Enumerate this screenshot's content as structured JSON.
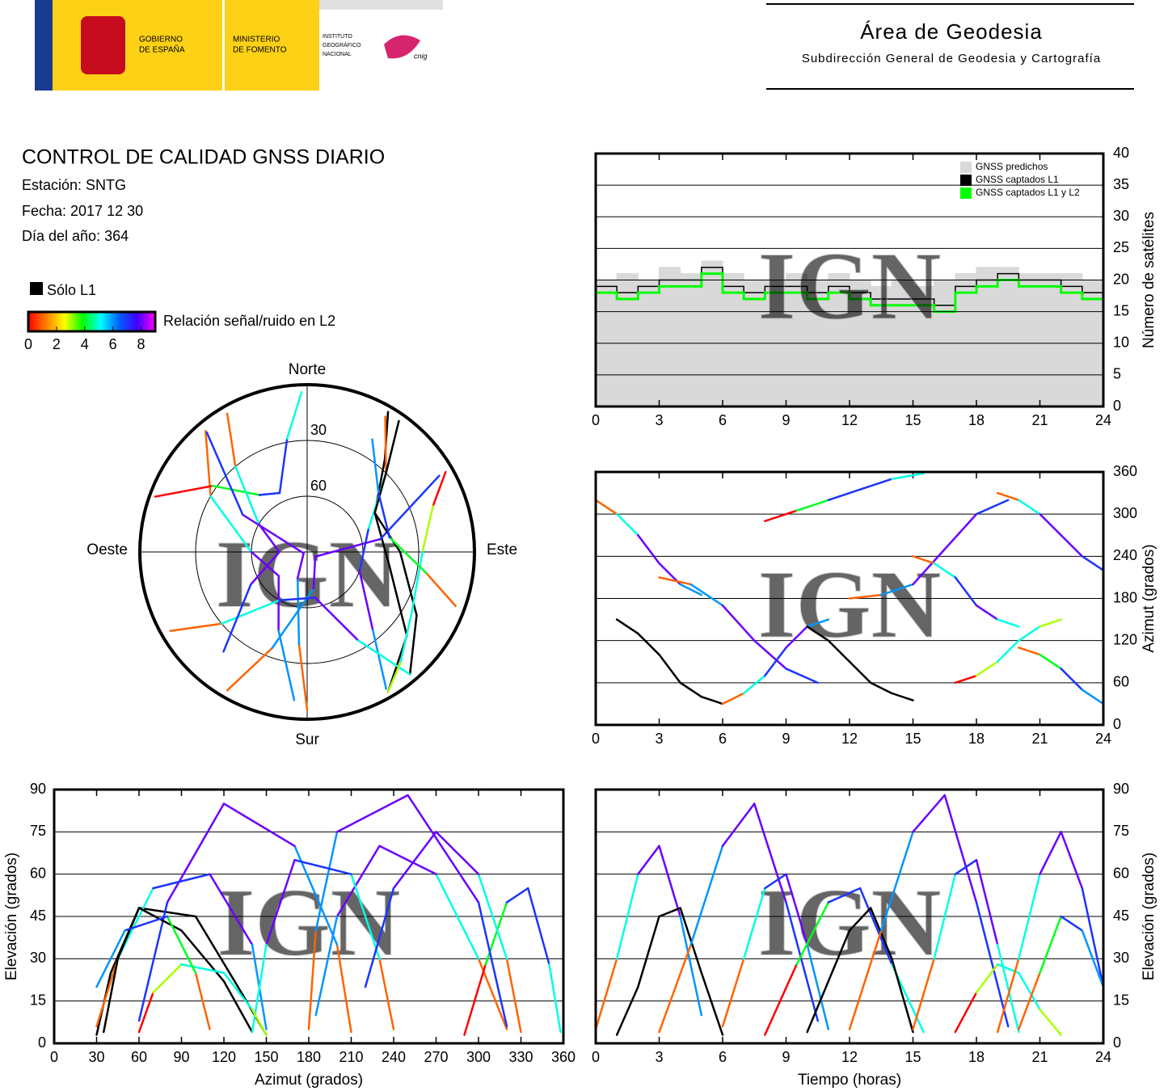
{
  "header": {
    "gov": [
      "GOBIERNO",
      "DE ESPAÑA"
    ],
    "ministry": [
      "MINISTERIO",
      "DE FOMENTO"
    ],
    "institute": [
      "INSTITUTO",
      "GEOGRÁFICO",
      "NACIONAL"
    ],
    "brand": "cnig",
    "area": "Área de Geodesia",
    "subarea": "Subdirección General de Geodesia y Cartografía"
  },
  "info": {
    "title": "CONTROL DE CALIDAD GNSS DIARIO",
    "station": "Estación: SNTG",
    "date": "Fecha: 2017 12 30",
    "doy": "Día del año: 364",
    "l1_only_label": "Sólo L1",
    "l1_only_color": "#000000",
    "colorbar": {
      "label": "Relación señal/ruido en L2",
      "clim": [
        0,
        9
      ],
      "ticks": [
        0,
        2,
        4,
        6,
        8
      ],
      "colors": [
        "#ff0000",
        "#ff8000",
        "#ffff00",
        "#00ff00",
        "#00ffff",
        "#0060ff",
        "#4000ff",
        "#ff00ff"
      ]
    }
  },
  "watermark": "IGN",
  "chart_data": [
    {
      "type": "skyplot",
      "north": "Norte",
      "south": "Sur",
      "east": "Este",
      "west": "Oeste",
      "rlim": [
        0,
        90
      ],
      "rticks": [
        30,
        60
      ],
      "passes": [
        {
          "time": [
            0,
            1,
            2,
            3,
            4,
            5
          ],
          "az": [
            320,
            300,
            270,
            230,
            200,
            185
          ],
          "el": [
            5,
            30,
            60,
            70,
            45,
            10
          ],
          "snr": [
            1,
            5,
            8,
            8,
            6,
            2
          ],
          "l1_only": false
        },
        {
          "time": [
            1,
            2,
            3,
            4,
            5,
            6
          ],
          "az": [
            150,
            130,
            100,
            60,
            40,
            30
          ],
          "el": [
            3,
            20,
            45,
            48,
            25,
            3
          ],
          "snr": [
            0,
            4,
            7,
            7,
            4,
            0
          ],
          "l1_only": true
        },
        {
          "time": [
            3,
            4.5,
            6,
            7.5,
            9,
            10.5
          ],
          "az": [
            210,
            200,
            170,
            120,
            80,
            60
          ],
          "el": [
            4,
            35,
            70,
            85,
            50,
            8
          ],
          "snr": [
            1,
            6,
            8,
            8,
            7,
            2
          ],
          "l1_only": false
        },
        {
          "time": [
            6,
            7,
            8,
            9,
            10,
            11
          ],
          "az": [
            30,
            45,
            70,
            110,
            140,
            150
          ],
          "el": [
            6,
            30,
            55,
            60,
            35,
            5
          ],
          "snr": [
            1,
            5,
            7,
            8,
            6,
            1
          ],
          "l1_only": false
        },
        {
          "time": [
            8,
            9.5,
            11,
            12.5,
            14,
            15.5
          ],
          "az": [
            290,
            305,
            320,
            335,
            350,
            358
          ],
          "el": [
            3,
            28,
            50,
            55,
            28,
            4
          ],
          "snr": [
            0,
            4,
            7,
            7,
            5,
            1
          ],
          "l1_only": false
        },
        {
          "time": [
            10,
            11,
            12,
            13,
            14,
            15
          ],
          "az": [
            140,
            120,
            90,
            60,
            45,
            35
          ],
          "el": [
            4,
            22,
            40,
            48,
            30,
            4
          ],
          "snr": [
            0,
            3,
            6,
            6,
            4,
            0
          ],
          "l1_only": true
        },
        {
          "time": [
            12,
            13.5,
            15,
            16.5,
            18,
            19.5
          ],
          "az": [
            180,
            185,
            200,
            250,
            300,
            320
          ],
          "el": [
            5,
            40,
            75,
            88,
            50,
            6
          ],
          "snr": [
            1,
            6,
            8,
            8,
            7,
            2
          ],
          "l1_only": false
        },
        {
          "time": [
            15,
            16,
            17,
            18,
            19,
            20
          ],
          "az": [
            240,
            230,
            210,
            170,
            150,
            140
          ],
          "el": [
            5,
            30,
            60,
            65,
            35,
            4
          ],
          "snr": [
            1,
            5,
            7,
            8,
            5,
            1
          ],
          "l1_only": false
        },
        {
          "time": [
            17,
            18,
            19,
            20,
            21,
            22
          ],
          "az": [
            60,
            70,
            90,
            120,
            140,
            150
          ],
          "el": [
            4,
            18,
            28,
            25,
            12,
            3
          ],
          "snr": [
            0,
            3,
            5,
            5,
            3,
            0
          ],
          "l1_only": false
        },
        {
          "time": [
            19,
            20,
            21,
            22,
            23,
            24
          ],
          "az": [
            330,
            320,
            300,
            270,
            240,
            220
          ],
          "el": [
            4,
            30,
            60,
            75,
            55,
            20
          ],
          "snr": [
            1,
            5,
            8,
            8,
            7,
            4
          ],
          "l1_only": false
        },
        {
          "time": [
            20,
            21,
            22,
            23,
            24
          ],
          "az": [
            110,
            100,
            80,
            50,
            30
          ],
          "el": [
            5,
            25,
            45,
            40,
            20
          ],
          "snr": [
            1,
            4,
            7,
            6,
            3
          ],
          "l1_only": false
        }
      ]
    },
    {
      "type": "step",
      "ylabel": "Número de satélites",
      "x": [
        0,
        1,
        2,
        3,
        4,
        5,
        6,
        7,
        8,
        9,
        10,
        11,
        12,
        13,
        14,
        15,
        16,
        17,
        18,
        19,
        20,
        21,
        22,
        23,
        24
      ],
      "xlim": [
        0,
        24
      ],
      "xticks": [
        0,
        3,
        6,
        9,
        12,
        15,
        18,
        21,
        24
      ],
      "ylim": [
        0,
        40
      ],
      "yticks": [
        0,
        5,
        10,
        15,
        20,
        25,
        30,
        35,
        40
      ],
      "grid": true,
      "series": [
        {
          "name": "GNSS predichos",
          "color": "#d9d9d9",
          "values": [
            20,
            21,
            20,
            22,
            21,
            23,
            21,
            20,
            20,
            21,
            20,
            21,
            20,
            19,
            20,
            19,
            20,
            21,
            22,
            22,
            21,
            21,
            21,
            20,
            20
          ]
        },
        {
          "name": "GNSS captados L1",
          "color": "#000000",
          "values": [
            19,
            18,
            19,
            20,
            20,
            22,
            19,
            18,
            19,
            19,
            18,
            19,
            18,
            17,
            17,
            17,
            16,
            19,
            20,
            21,
            20,
            20,
            19,
            18,
            18
          ]
        },
        {
          "name": "GNSS captados L1 y L2",
          "color": "#00ff00",
          "values": [
            18,
            17,
            18,
            19,
            19,
            21,
            18,
            17,
            18,
            18,
            17,
            18,
            17,
            16,
            16,
            16,
            15,
            18,
            19,
            20,
            19,
            19,
            18,
            17,
            17
          ]
        }
      ]
    },
    {
      "type": "azimuth_time",
      "ylabel": "Azimut (grados)",
      "xlim": [
        0,
        24
      ],
      "xticks": [
        0,
        3,
        6,
        9,
        12,
        15,
        18,
        21,
        24
      ],
      "ylim": [
        0,
        360
      ],
      "yticks": [
        0,
        60,
        120,
        180,
        240,
        300,
        360
      ],
      "grid": true
    },
    {
      "type": "elevation_azimuth",
      "xlabel": "Azimut (grados)",
      "ylabel": "Elevación (grados)",
      "xlim": [
        0,
        360
      ],
      "xticks": [
        0,
        30,
        60,
        90,
        120,
        150,
        180,
        210,
        240,
        270,
        300,
        330,
        360
      ],
      "ylim": [
        0,
        90
      ],
      "yticks": [
        0,
        15,
        30,
        45,
        60,
        75,
        90
      ],
      "grid": true
    },
    {
      "type": "elevation_time",
      "xlabel": "Tiempo (horas)",
      "ylabel": "Elevación (grados)",
      "xlim": [
        0,
        24
      ],
      "xticks": [
        0,
        3,
        6,
        9,
        12,
        15,
        18,
        21,
        24
      ],
      "ylim": [
        0,
        90
      ],
      "yticks": [
        0,
        15,
        30,
        45,
        60,
        75,
        90
      ],
      "grid": true
    }
  ]
}
